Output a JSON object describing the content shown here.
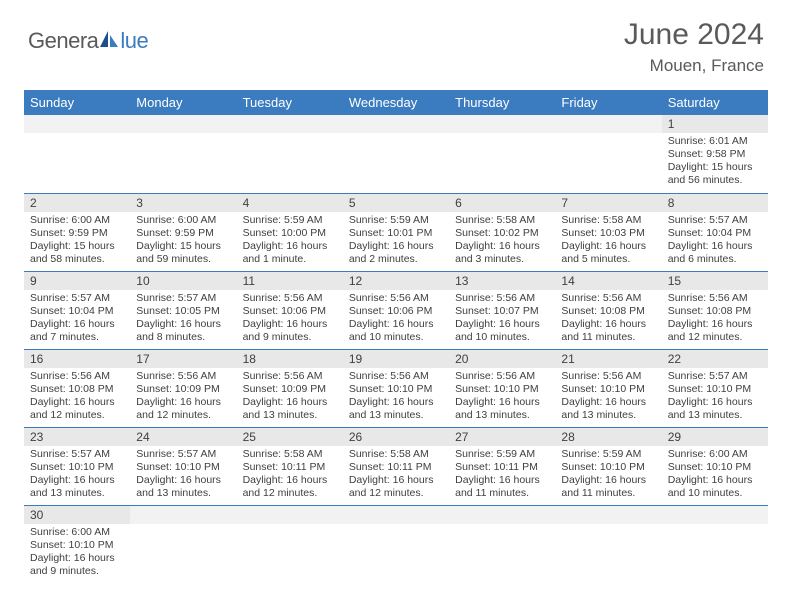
{
  "logo": {
    "general": "Genera",
    "blue": "lue"
  },
  "title": "June 2024",
  "location": "Mouen, France",
  "colors": {
    "header_bg": "#3b7bbf",
    "header_text": "#ffffff",
    "daynum_bg": "#e8e8e8",
    "border": "#3b7bbf",
    "text": "#404040"
  },
  "weekdays": [
    "Sunday",
    "Monday",
    "Tuesday",
    "Wednesday",
    "Thursday",
    "Friday",
    "Saturday"
  ],
  "weeks": [
    [
      {
        "n": "",
        "sr": "",
        "ss": "",
        "dl": ""
      },
      {
        "n": "",
        "sr": "",
        "ss": "",
        "dl": ""
      },
      {
        "n": "",
        "sr": "",
        "ss": "",
        "dl": ""
      },
      {
        "n": "",
        "sr": "",
        "ss": "",
        "dl": ""
      },
      {
        "n": "",
        "sr": "",
        "ss": "",
        "dl": ""
      },
      {
        "n": "",
        "sr": "",
        "ss": "",
        "dl": ""
      },
      {
        "n": "1",
        "sr": "Sunrise: 6:01 AM",
        "ss": "Sunset: 9:58 PM",
        "dl": "Daylight: 15 hours and 56 minutes."
      }
    ],
    [
      {
        "n": "2",
        "sr": "Sunrise: 6:00 AM",
        "ss": "Sunset: 9:59 PM",
        "dl": "Daylight: 15 hours and 58 minutes."
      },
      {
        "n": "3",
        "sr": "Sunrise: 6:00 AM",
        "ss": "Sunset: 9:59 PM",
        "dl": "Daylight: 15 hours and 59 minutes."
      },
      {
        "n": "4",
        "sr": "Sunrise: 5:59 AM",
        "ss": "Sunset: 10:00 PM",
        "dl": "Daylight: 16 hours and 1 minute."
      },
      {
        "n": "5",
        "sr": "Sunrise: 5:59 AM",
        "ss": "Sunset: 10:01 PM",
        "dl": "Daylight: 16 hours and 2 minutes."
      },
      {
        "n": "6",
        "sr": "Sunrise: 5:58 AM",
        "ss": "Sunset: 10:02 PM",
        "dl": "Daylight: 16 hours and 3 minutes."
      },
      {
        "n": "7",
        "sr": "Sunrise: 5:58 AM",
        "ss": "Sunset: 10:03 PM",
        "dl": "Daylight: 16 hours and 5 minutes."
      },
      {
        "n": "8",
        "sr": "Sunrise: 5:57 AM",
        "ss": "Sunset: 10:04 PM",
        "dl": "Daylight: 16 hours and 6 minutes."
      }
    ],
    [
      {
        "n": "9",
        "sr": "Sunrise: 5:57 AM",
        "ss": "Sunset: 10:04 PM",
        "dl": "Daylight: 16 hours and 7 minutes."
      },
      {
        "n": "10",
        "sr": "Sunrise: 5:57 AM",
        "ss": "Sunset: 10:05 PM",
        "dl": "Daylight: 16 hours and 8 minutes."
      },
      {
        "n": "11",
        "sr": "Sunrise: 5:56 AM",
        "ss": "Sunset: 10:06 PM",
        "dl": "Daylight: 16 hours and 9 minutes."
      },
      {
        "n": "12",
        "sr": "Sunrise: 5:56 AM",
        "ss": "Sunset: 10:06 PM",
        "dl": "Daylight: 16 hours and 10 minutes."
      },
      {
        "n": "13",
        "sr": "Sunrise: 5:56 AM",
        "ss": "Sunset: 10:07 PM",
        "dl": "Daylight: 16 hours and 10 minutes."
      },
      {
        "n": "14",
        "sr": "Sunrise: 5:56 AM",
        "ss": "Sunset: 10:08 PM",
        "dl": "Daylight: 16 hours and 11 minutes."
      },
      {
        "n": "15",
        "sr": "Sunrise: 5:56 AM",
        "ss": "Sunset: 10:08 PM",
        "dl": "Daylight: 16 hours and 12 minutes."
      }
    ],
    [
      {
        "n": "16",
        "sr": "Sunrise: 5:56 AM",
        "ss": "Sunset: 10:08 PM",
        "dl": "Daylight: 16 hours and 12 minutes."
      },
      {
        "n": "17",
        "sr": "Sunrise: 5:56 AM",
        "ss": "Sunset: 10:09 PM",
        "dl": "Daylight: 16 hours and 12 minutes."
      },
      {
        "n": "18",
        "sr": "Sunrise: 5:56 AM",
        "ss": "Sunset: 10:09 PM",
        "dl": "Daylight: 16 hours and 13 minutes."
      },
      {
        "n": "19",
        "sr": "Sunrise: 5:56 AM",
        "ss": "Sunset: 10:10 PM",
        "dl": "Daylight: 16 hours and 13 minutes."
      },
      {
        "n": "20",
        "sr": "Sunrise: 5:56 AM",
        "ss": "Sunset: 10:10 PM",
        "dl": "Daylight: 16 hours and 13 minutes."
      },
      {
        "n": "21",
        "sr": "Sunrise: 5:56 AM",
        "ss": "Sunset: 10:10 PM",
        "dl": "Daylight: 16 hours and 13 minutes."
      },
      {
        "n": "22",
        "sr": "Sunrise: 5:57 AM",
        "ss": "Sunset: 10:10 PM",
        "dl": "Daylight: 16 hours and 13 minutes."
      }
    ],
    [
      {
        "n": "23",
        "sr": "Sunrise: 5:57 AM",
        "ss": "Sunset: 10:10 PM",
        "dl": "Daylight: 16 hours and 13 minutes."
      },
      {
        "n": "24",
        "sr": "Sunrise: 5:57 AM",
        "ss": "Sunset: 10:10 PM",
        "dl": "Daylight: 16 hours and 13 minutes."
      },
      {
        "n": "25",
        "sr": "Sunrise: 5:58 AM",
        "ss": "Sunset: 10:11 PM",
        "dl": "Daylight: 16 hours and 12 minutes."
      },
      {
        "n": "26",
        "sr": "Sunrise: 5:58 AM",
        "ss": "Sunset: 10:11 PM",
        "dl": "Daylight: 16 hours and 12 minutes."
      },
      {
        "n": "27",
        "sr": "Sunrise: 5:59 AM",
        "ss": "Sunset: 10:11 PM",
        "dl": "Daylight: 16 hours and 11 minutes."
      },
      {
        "n": "28",
        "sr": "Sunrise: 5:59 AM",
        "ss": "Sunset: 10:10 PM",
        "dl": "Daylight: 16 hours and 11 minutes."
      },
      {
        "n": "29",
        "sr": "Sunrise: 6:00 AM",
        "ss": "Sunset: 10:10 PM",
        "dl": "Daylight: 16 hours and 10 minutes."
      }
    ],
    [
      {
        "n": "30",
        "sr": "Sunrise: 6:00 AM",
        "ss": "Sunset: 10:10 PM",
        "dl": "Daylight: 16 hours and 9 minutes."
      },
      {
        "n": "",
        "sr": "",
        "ss": "",
        "dl": ""
      },
      {
        "n": "",
        "sr": "",
        "ss": "",
        "dl": ""
      },
      {
        "n": "",
        "sr": "",
        "ss": "",
        "dl": ""
      },
      {
        "n": "",
        "sr": "",
        "ss": "",
        "dl": ""
      },
      {
        "n": "",
        "sr": "",
        "ss": "",
        "dl": ""
      },
      {
        "n": "",
        "sr": "",
        "ss": "",
        "dl": ""
      }
    ]
  ]
}
